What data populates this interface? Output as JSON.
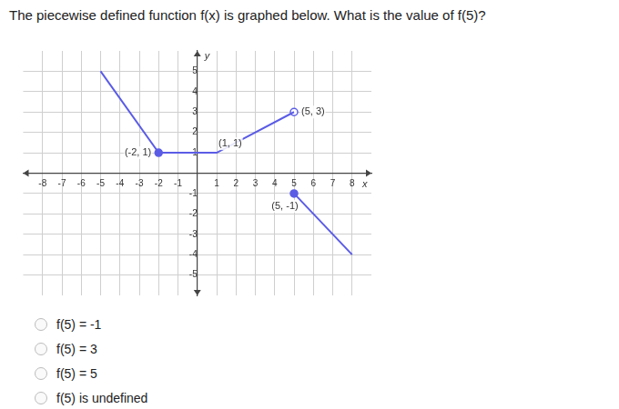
{
  "question": "The piecewise defined function f(x) is graphed below. What is the value of f(5)?",
  "choices": [
    "f(5) = -1",
    "f(5) = 3",
    "f(5) = 5",
    "f(5) is undefined"
  ],
  "chart_data": {
    "type": "line",
    "xlabel": "x",
    "ylabel": "y",
    "xlim": [
      -9,
      9
    ],
    "ylim": [
      -6,
      6
    ],
    "xticks": [
      -8,
      -7,
      -6,
      -5,
      -4,
      -3,
      -2,
      -1,
      1,
      2,
      3,
      4,
      5,
      6,
      7,
      8
    ],
    "yticks": [
      -5,
      -4,
      -3,
      -2,
      -1,
      1,
      2,
      3,
      4,
      5
    ],
    "grid": true,
    "series": [
      {
        "color": "#5b5ce6",
        "x": [
          -5,
          -2,
          1,
          5
        ],
        "values": [
          5,
          1,
          1,
          3
        ]
      },
      {
        "color": "#5b5ce6",
        "x": [
          5,
          8
        ],
        "values": [
          -1,
          -4
        ]
      },
      {
        "type": "scatter",
        "marker": "filled",
        "color": "#5b5ce6",
        "x": [
          -2,
          5
        ],
        "values": [
          1,
          -1
        ]
      },
      {
        "type": "scatter",
        "marker": "open",
        "color": "#5b5ce6",
        "x": [
          5
        ],
        "values": [
          3
        ]
      }
    ],
    "annotations": [
      {
        "x": -2,
        "y": 1,
        "text": "(-2, 1)"
      },
      {
        "x": 1,
        "y": 1,
        "text": "(1, 1)"
      },
      {
        "x": 5,
        "y": 3,
        "text": "(5, 3)"
      },
      {
        "x": 5,
        "y": -1,
        "text": "(5, -1)"
      }
    ]
  }
}
